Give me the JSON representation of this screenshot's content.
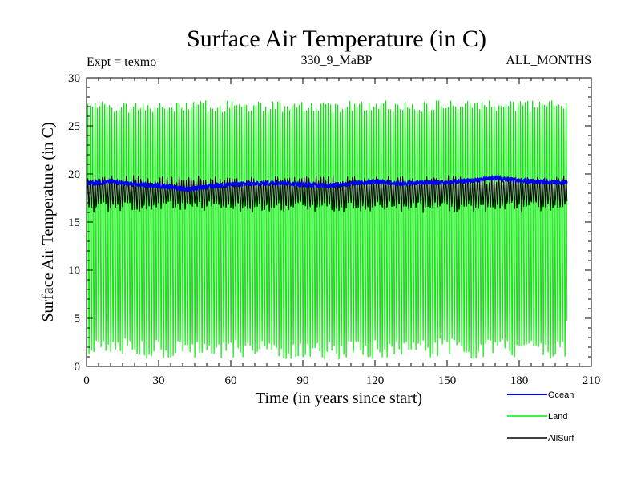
{
  "chart_data": {
    "type": "line",
    "title": "Surface Air Temperature (in C)",
    "subtitle_left": "Expt = texmo",
    "subtitle_center": "330_9_MaBP",
    "subtitle_right": "ALL_MONTHS",
    "xlabel": "Time (in years since start)",
    "ylabel": "Surface Air Temperature (in C)",
    "xlim": [
      0,
      210
    ],
    "ylim": [
      0,
      30
    ],
    "xticks": [
      0,
      30,
      60,
      90,
      120,
      150,
      180,
      210
    ],
    "yticks": [
      0,
      5,
      10,
      15,
      20,
      25,
      30
    ],
    "x_start": 0,
    "x_end": 200,
    "series": [
      {
        "name": "Land",
        "color": "#00ee00",
        "seasonal_cycle": true,
        "annual_max_range": [
          26.8,
          28.0
        ],
        "annual_min_range": [
          0.4,
          2.5
        ],
        "mean": 14.5
      },
      {
        "name": "AllSurf",
        "color": "#000000",
        "seasonal_cycle": true,
        "annual_max_range": [
          19.0,
          19.8
        ],
        "annual_min_range": [
          16.0,
          17.2
        ],
        "mean": 18.6
      },
      {
        "name": "Ocean",
        "color": "#0000ee",
        "seasonal_cycle": false,
        "trend": [
          [
            0,
            19.0
          ],
          [
            10,
            19.2
          ],
          [
            20,
            18.9
          ],
          [
            30,
            18.8
          ],
          [
            43,
            18.4
          ],
          [
            50,
            18.7
          ],
          [
            60,
            18.9
          ],
          [
            70,
            19.0
          ],
          [
            80,
            19.1
          ],
          [
            90,
            18.9
          ],
          [
            100,
            18.8
          ],
          [
            110,
            19.0
          ],
          [
            120,
            19.2
          ],
          [
            130,
            19.0
          ],
          [
            140,
            19.1
          ],
          [
            150,
            19.1
          ],
          [
            160,
            19.3
          ],
          [
            170,
            19.6
          ],
          [
            180,
            19.3
          ],
          [
            190,
            19.2
          ],
          [
            199,
            19.1
          ]
        ]
      }
    ],
    "legend": [
      {
        "name": "Ocean",
        "color": "#0000ee"
      },
      {
        "name": "Land",
        "color": "#00ee00"
      },
      {
        "name": "AllSurf",
        "color": "#000000"
      }
    ],
    "legend_position": "bottom-right"
  }
}
